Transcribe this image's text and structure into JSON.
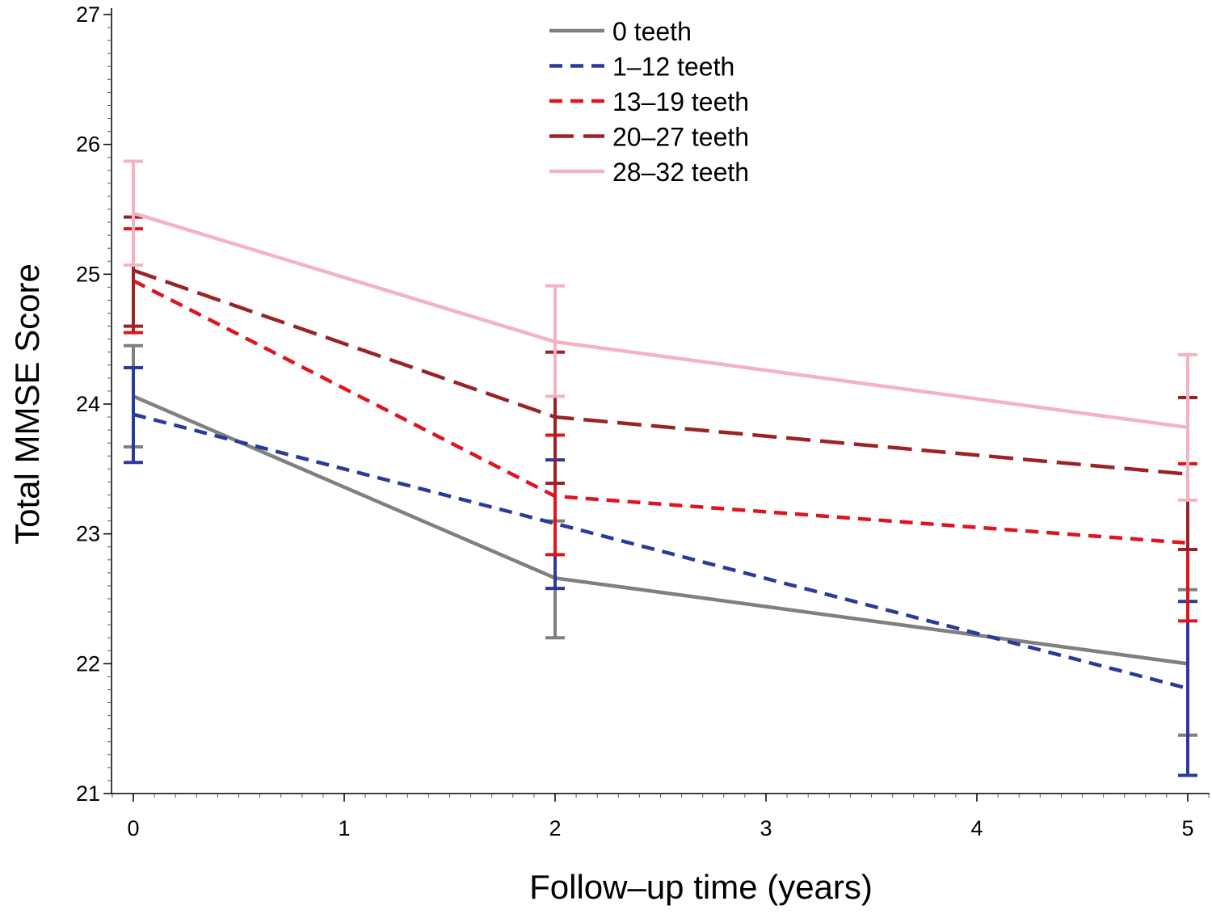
{
  "chart_data": {
    "type": "line",
    "title": "",
    "xlabel": "Follow–up time (years)",
    "ylabel": "Total MMSE Score",
    "xlim": [
      -0.1,
      5.1
    ],
    "ylim": [
      21,
      27
    ],
    "x_ticks": [
      0,
      1,
      2,
      3,
      4,
      5
    ],
    "y_ticks": [
      21,
      22,
      23,
      24,
      25,
      26,
      27
    ],
    "grid": false,
    "legend_position": "top-center",
    "series": [
      {
        "name": "0 teeth",
        "color": "#808080",
        "dash": "solid",
        "x": [
          0,
          2,
          5
        ],
        "y": [
          24.06,
          22.66,
          22.0
        ],
        "lower": [
          23.67,
          22.2,
          21.45
        ],
        "upper": [
          24.45,
          23.1,
          22.57
        ]
      },
      {
        "name": "1–12 teeth",
        "color": "#2a3a9a",
        "dash": "short",
        "x": [
          0,
          2,
          5
        ],
        "y": [
          23.92,
          23.08,
          21.81
        ],
        "lower": [
          23.55,
          22.58,
          21.14
        ],
        "upper": [
          24.28,
          23.57,
          22.48
        ]
      },
      {
        "name": "13–19 teeth",
        "color": "#e0141e",
        "dash": "short",
        "x": [
          0,
          2,
          5
        ],
        "y": [
          24.95,
          23.29,
          22.93
        ],
        "lower": [
          24.55,
          22.84,
          22.33
        ],
        "upper": [
          25.35,
          23.76,
          23.54
        ]
      },
      {
        "name": "20–27 teeth",
        "color": "#9b2226",
        "dash": "long",
        "x": [
          0,
          2,
          5
        ],
        "y": [
          25.03,
          23.9,
          23.46
        ],
        "lower": [
          24.6,
          23.39,
          22.88
        ],
        "upper": [
          25.44,
          24.4,
          24.05
        ]
      },
      {
        "name": "28–32 teeth",
        "color": "#f4b3c0",
        "dash": "solid",
        "x": [
          0,
          2,
          5
        ],
        "y": [
          25.47,
          24.48,
          23.82
        ],
        "lower": [
          25.07,
          24.06,
          23.26
        ],
        "upper": [
          25.87,
          24.91,
          24.38
        ]
      }
    ]
  }
}
